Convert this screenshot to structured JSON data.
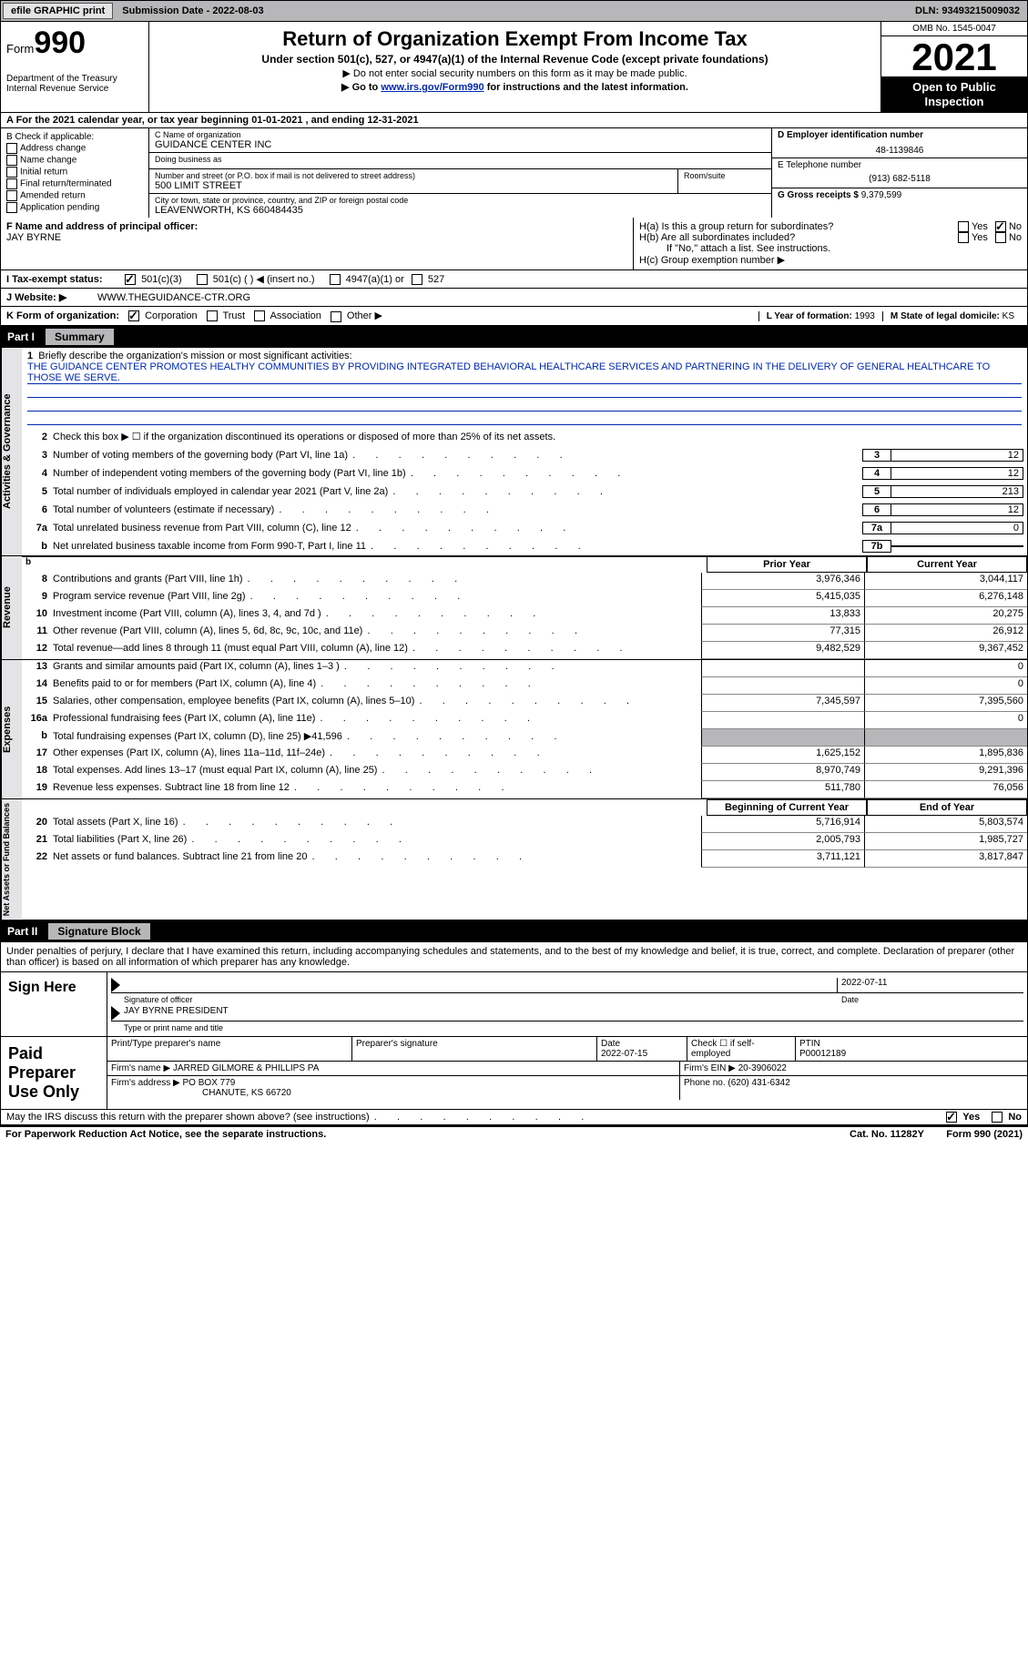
{
  "topbar": {
    "efile": "efile GRAPHIC print",
    "submission": "Submission Date - 2022-08-03",
    "dln": "DLN: 93493215009032"
  },
  "header": {
    "form_prefix": "Form",
    "form_num": "990",
    "dept": "Department of the Treasury",
    "irs": "Internal Revenue Service",
    "title": "Return of Organization Exempt From Income Tax",
    "sub1": "Under section 501(c), 527, or 4947(a)(1) of the Internal Revenue Code (except private foundations)",
    "sub2a": "▶ Do not enter social security numbers on this form as it may be made public.",
    "sub2b_pre": "▶ Go to ",
    "sub2b_link": "www.irs.gov/Form990",
    "sub2b_post": " for instructions and the latest information.",
    "omb": "OMB No. 1545-0047",
    "year": "2021",
    "otp": "Open to Public Inspection"
  },
  "row_a": "A For the 2021 calendar year, or tax year beginning 01-01-2021   , and ending 12-31-2021",
  "section_b": {
    "title": "B Check if applicable:",
    "items": [
      "Address change",
      "Name change",
      "Initial return",
      "Final return/terminated",
      "Amended return",
      "Application pending"
    ]
  },
  "section_c": {
    "name_lbl": "C Name of organization",
    "name": "GUIDANCE CENTER INC",
    "dba_lbl": "Doing business as",
    "dba": "",
    "addr_lbl": "Number and street (or P.O. box if mail is not delivered to street address)",
    "room_lbl": "Room/suite",
    "addr": "500 LIMIT STREET",
    "city_lbl": "City or town, state or province, country, and ZIP or foreign postal code",
    "city": "LEAVENWORTH, KS  660484435"
  },
  "section_d": {
    "ein_lbl": "D Employer identification number",
    "ein": "48-1139846",
    "tel_lbl": "E Telephone number",
    "tel": "(913) 682-5118",
    "gross_lbl": "G Gross receipts $",
    "gross": "9,379,599"
  },
  "section_f": {
    "lbl": "F Name and address of principal officer:",
    "name": "JAY BYRNE"
  },
  "section_h": {
    "ha": "H(a)  Is this a group return for subordinates?",
    "hb": "H(b)  Are all subordinates included?",
    "hb_note": "If \"No,\" attach a list. See instructions.",
    "hc": "H(c)  Group exemption number ▶",
    "yes": "Yes",
    "no": "No"
  },
  "row_i": {
    "lbl": "I    Tax-exempt status:",
    "opt1": "501(c)(3)",
    "opt2": "501(c) (  ) ◀ (insert no.)",
    "opt3": "4947(a)(1) or",
    "opt4": "527"
  },
  "row_j": {
    "lbl": "J   Website: ▶",
    "val": "WWW.THEGUIDANCE-CTR.ORG"
  },
  "row_k": {
    "lbl": "K Form of organization:",
    "opts": [
      "Corporation",
      "Trust",
      "Association",
      "Other ▶"
    ],
    "l_lbl": "L Year of formation: ",
    "l_val": "1993",
    "m_lbl": "M State of legal domicile: ",
    "m_val": "KS"
  },
  "part1": {
    "header": "Part I",
    "title": "Summary",
    "side_gov": "Activities & Governance",
    "side_rev": "Revenue",
    "side_exp": "Expenses",
    "side_net": "Net Assets or Fund Balances",
    "line1_lbl": "Briefly describe the organization's mission or most significant activities:",
    "line1_val": "THE GUIDANCE CENTER PROMOTES HEALTHY COMMUNITIES BY PROVIDING INTEGRATED BEHAVIORAL HEALTHCARE SERVICES AND PARTNERING IN THE DELIVERY OF GENERAL HEALTHCARE TO THOSE WE SERVE.",
    "line2": "Check this box ▶ ☐ if the organization discontinued its operations or disposed of more than 25% of its net assets.",
    "rows_gov": [
      {
        "n": "3",
        "d": "Number of voting members of the governing body (Part VI, line 1a)",
        "box": "3",
        "v": "12"
      },
      {
        "n": "4",
        "d": "Number of independent voting members of the governing body (Part VI, line 1b)",
        "box": "4",
        "v": "12"
      },
      {
        "n": "5",
        "d": "Total number of individuals employed in calendar year 2021 (Part V, line 2a)",
        "box": "5",
        "v": "213"
      },
      {
        "n": "6",
        "d": "Total number of volunteers (estimate if necessary)",
        "box": "6",
        "v": "12"
      },
      {
        "n": "7a",
        "d": "Total unrelated business revenue from Part VIII, column (C), line 12",
        "box": "7a",
        "v": "0"
      },
      {
        "n": "b",
        "d": "Net unrelated business taxable income from Form 990-T, Part I, line 11",
        "box": "7b",
        "v": ""
      }
    ],
    "hdr_prior": "Prior Year",
    "hdr_curr": "Current Year",
    "rows_rev": [
      {
        "n": "8",
        "d": "Contributions and grants (Part VIII, line 1h)",
        "p": "3,976,346",
        "c": "3,044,117"
      },
      {
        "n": "9",
        "d": "Program service revenue (Part VIII, line 2g)",
        "p": "5,415,035",
        "c": "6,276,148"
      },
      {
        "n": "10",
        "d": "Investment income (Part VIII, column (A), lines 3, 4, and 7d )",
        "p": "13,833",
        "c": "20,275"
      },
      {
        "n": "11",
        "d": "Other revenue (Part VIII, column (A), lines 5, 6d, 8c, 9c, 10c, and 11e)",
        "p": "77,315",
        "c": "26,912"
      },
      {
        "n": "12",
        "d": "Total revenue—add lines 8 through 11 (must equal Part VIII, column (A), line 12)",
        "p": "9,482,529",
        "c": "9,367,452"
      }
    ],
    "rows_exp": [
      {
        "n": "13",
        "d": "Grants and similar amounts paid (Part IX, column (A), lines 1–3 )",
        "p": "",
        "c": "0"
      },
      {
        "n": "14",
        "d": "Benefits paid to or for members (Part IX, column (A), line 4)",
        "p": "",
        "c": "0"
      },
      {
        "n": "15",
        "d": "Salaries, other compensation, employee benefits (Part IX, column (A), lines 5–10)",
        "p": "7,345,597",
        "c": "7,395,560"
      },
      {
        "n": "16a",
        "d": "Professional fundraising fees (Part IX, column (A), line 11e)",
        "p": "",
        "c": "0"
      },
      {
        "n": "b",
        "d": "Total fundraising expenses (Part IX, column (D), line 25) ▶41,596",
        "p": "shaded",
        "c": "shaded"
      },
      {
        "n": "17",
        "d": "Other expenses (Part IX, column (A), lines 11a–11d, 11f–24e)",
        "p": "1,625,152",
        "c": "1,895,836"
      },
      {
        "n": "18",
        "d": "Total expenses. Add lines 13–17 (must equal Part IX, column (A), line 25)",
        "p": "8,970,749",
        "c": "9,291,396"
      },
      {
        "n": "19",
        "d": "Revenue less expenses. Subtract line 18 from line 12",
        "p": "511,780",
        "c": "76,056"
      }
    ],
    "hdr_begin": "Beginning of Current Year",
    "hdr_end": "End of Year",
    "rows_net": [
      {
        "n": "20",
        "d": "Total assets (Part X, line 16)",
        "p": "5,716,914",
        "c": "5,803,574"
      },
      {
        "n": "21",
        "d": "Total liabilities (Part X, line 26)",
        "p": "2,005,793",
        "c": "1,985,727"
      },
      {
        "n": "22",
        "d": "Net assets or fund balances. Subtract line 21 from line 20",
        "p": "3,711,121",
        "c": "3,817,847"
      }
    ]
  },
  "part2": {
    "header": "Part II",
    "title": "Signature Block",
    "penalty": "Under penalties of perjury, I declare that I have examined this return, including accompanying schedules and statements, and to the best of my knowledge and belief, it is true, correct, and complete. Declaration of preparer (other than officer) is based on all information of which preparer has any knowledge.",
    "sign_here": "Sign Here",
    "sig_officer": "Signature of officer",
    "sig_date": "2022-07-11",
    "sig_date_lbl": "Date",
    "officer_name": "JAY BYRNE  PRESIDENT",
    "officer_name_lbl": "Type or print name and title",
    "paid_prep": "Paid Preparer Use Only",
    "prep_name_lbl": "Print/Type preparer's name",
    "prep_sig_lbl": "Preparer's signature",
    "prep_date_lbl": "Date",
    "prep_date": "2022-07-15",
    "prep_chk_lbl": "Check ☐ if self-employed",
    "ptin_lbl": "PTIN",
    "ptin": "P00012189",
    "firm_name_lbl": "Firm's name    ▶",
    "firm_name": "JARRED GILMORE & PHILLIPS PA",
    "firm_ein_lbl": "Firm's EIN ▶",
    "firm_ein": "20-3906022",
    "firm_addr_lbl": "Firm's address ▶",
    "firm_addr1": "PO BOX 779",
    "firm_addr2": "CHANUTE, KS  66720",
    "firm_phone_lbl": "Phone no.",
    "firm_phone": "(620) 431-6342"
  },
  "footer": {
    "q": "May the IRS discuss this return with the preparer shown above? (see instructions)",
    "yes": "Yes",
    "no": "No",
    "paperwork": "For Paperwork Reduction Act Notice, see the separate instructions.",
    "cat": "Cat. No. 11282Y",
    "form": "Form 990 (2021)"
  }
}
